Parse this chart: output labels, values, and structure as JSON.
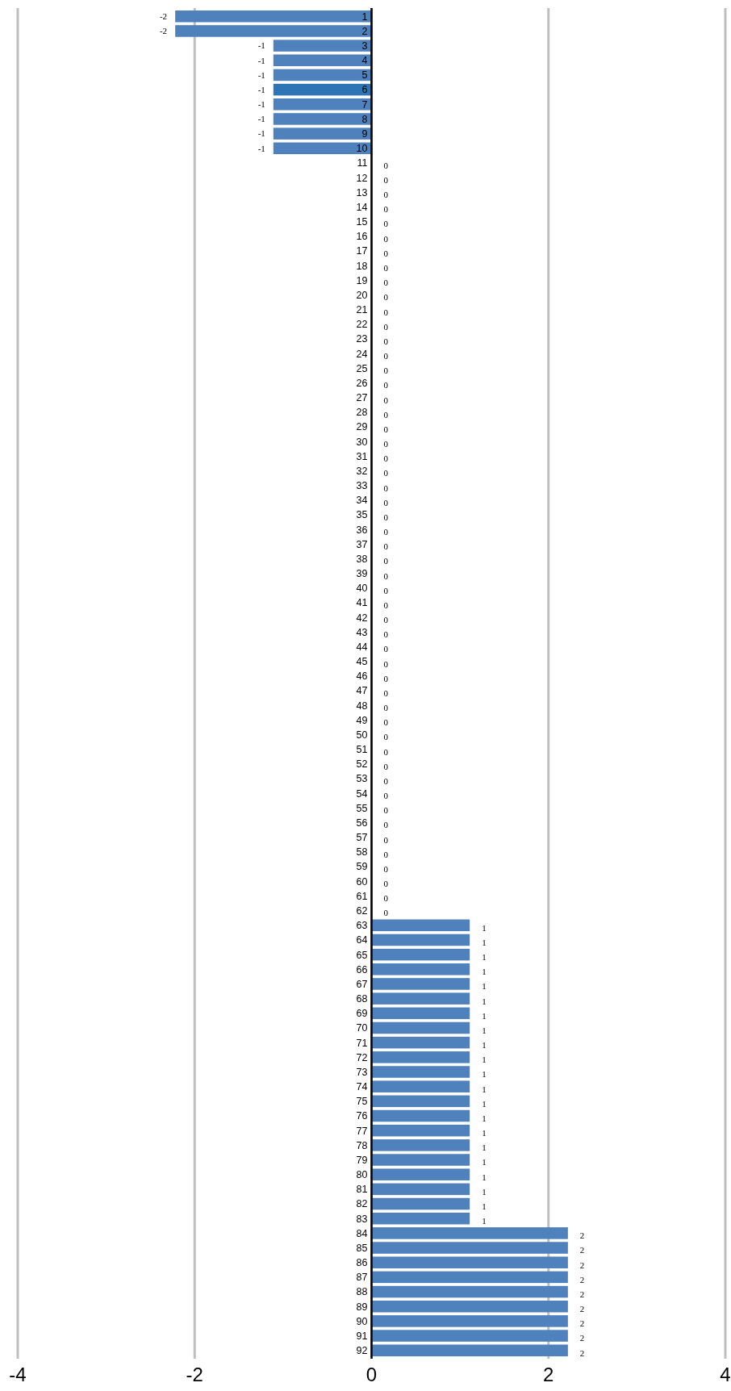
{
  "chart_data": {
    "type": "bar",
    "orientation": "horizontal",
    "categories": [
      "1",
      "2",
      "3",
      "4",
      "5",
      "6",
      "7",
      "8",
      "9",
      "10",
      "11",
      "12",
      "13",
      "14",
      "15",
      "16",
      "17",
      "18",
      "19",
      "20",
      "21",
      "22",
      "23",
      "24",
      "25",
      "26",
      "27",
      "28",
      "29",
      "30",
      "31",
      "32",
      "33",
      "34",
      "35",
      "36",
      "37",
      "38",
      "39",
      "40",
      "41",
      "42",
      "43",
      "44",
      "45",
      "46",
      "47",
      "48",
      "49",
      "50",
      "51",
      "52",
      "53",
      "54",
      "55",
      "56",
      "57",
      "58",
      "59",
      "60",
      "61",
      "62",
      "63",
      "64",
      "65",
      "66",
      "67",
      "68",
      "69",
      "70",
      "71",
      "72",
      "73",
      "74",
      "75",
      "76",
      "77",
      "78",
      "79",
      "80",
      "81",
      "82",
      "83",
      "84",
      "85",
      "86",
      "87",
      "88",
      "89",
      "90",
      "91",
      "92"
    ],
    "values": [
      -2.22,
      -2.22,
      -1.11,
      -1.11,
      -1.11,
      -1.11,
      -1.11,
      -1.11,
      -1.11,
      -1.11,
      0,
      0,
      0,
      0,
      0,
      0,
      0,
      0,
      0,
      0,
      0,
      0,
      0,
      0,
      0,
      0,
      0,
      0,
      0,
      0,
      0,
      0,
      0,
      0,
      0,
      0,
      0,
      0,
      0,
      0,
      0,
      0,
      0,
      0,
      0,
      0,
      0,
      0,
      0,
      0,
      0,
      0,
      0,
      0,
      0,
      0,
      0,
      0,
      0,
      0,
      0,
      0,
      1.11,
      1.11,
      1.11,
      1.11,
      1.11,
      1.11,
      1.11,
      1.11,
      1.11,
      1.11,
      1.11,
      1.11,
      1.11,
      1.11,
      1.11,
      1.11,
      1.11,
      1.11,
      1.11,
      1.11,
      1.11,
      2.22,
      2.22,
      2.22,
      2.22,
      2.22,
      2.22,
      2.22,
      2.22,
      2.22
    ],
    "value_labels": [
      "-2",
      "-2",
      "-1",
      "-1",
      "-1",
      "-1",
      "-1",
      "-1",
      "-1",
      "-1",
      "0",
      "0",
      "0",
      "0",
      "0",
      "0",
      "0",
      "0",
      "0",
      "0",
      "0",
      "0",
      "0",
      "0",
      "0",
      "0",
      "0",
      "0",
      "0",
      "0",
      "0",
      "0",
      "0",
      "0",
      "0",
      "0",
      "0",
      "0",
      "0",
      "0",
      "0",
      "0",
      "0",
      "0",
      "0",
      "0",
      "0",
      "0",
      "0",
      "0",
      "0",
      "0",
      "0",
      "0",
      "0",
      "0",
      "0",
      "0",
      "0",
      "0",
      "0",
      "0",
      "1",
      "1",
      "1",
      "1",
      "1",
      "1",
      "1",
      "1",
      "1",
      "1",
      "1",
      "1",
      "1",
      "1",
      "1",
      "1",
      "1",
      "1",
      "1",
      "1",
      "1",
      "2",
      "2",
      "2",
      "2",
      "2",
      "2",
      "2",
      "2",
      "2"
    ],
    "colors": [
      "#4f81bd",
      "#4f81bd",
      "#4f81bd",
      "#4f81bd",
      "#4f81bd",
      "#2e75b6",
      "#4f81bd",
      "#4f81bd",
      "#4f81bd",
      "#4f81bd",
      "#4f81bd",
      "#4f81bd",
      "#4f81bd",
      "#4f81bd",
      "#4f81bd",
      "#4f81bd",
      "#4f81bd",
      "#4f81bd",
      "#4f81bd",
      "#4f81bd",
      "#4f81bd",
      "#4f81bd",
      "#4f81bd",
      "#4f81bd",
      "#4f81bd",
      "#4f81bd",
      "#4f81bd",
      "#4f81bd",
      "#4f81bd",
      "#4f81bd",
      "#4f81bd",
      "#4f81bd",
      "#4f81bd",
      "#4f81bd",
      "#4f81bd",
      "#4f81bd",
      "#4f81bd",
      "#4f81bd",
      "#4f81bd",
      "#4f81bd",
      "#4f81bd",
      "#4f81bd",
      "#4f81bd",
      "#4f81bd",
      "#4f81bd",
      "#4f81bd",
      "#4f81bd",
      "#4f81bd",
      "#4f81bd",
      "#4f81bd",
      "#4f81bd",
      "#4f81bd",
      "#4f81bd",
      "#4f81bd",
      "#4f81bd",
      "#4f81bd",
      "#4f81bd",
      "#4f81bd",
      "#4f81bd",
      "#4f81bd",
      "#4f81bd",
      "#4f81bd",
      "#4f81bd",
      "#4f81bd",
      "#4f81bd",
      "#4f81bd",
      "#4f81bd",
      "#4f81bd",
      "#4f81bd",
      "#4f81bd",
      "#4f81bd",
      "#4f81bd",
      "#4f81bd",
      "#4f81bd",
      "#4f81bd",
      "#4f81bd",
      "#4f81bd",
      "#4f81bd",
      "#4f81bd",
      "#4f81bd",
      "#4f81bd",
      "#4f81bd",
      "#4f81bd",
      "#4f81bd",
      "#4f81bd",
      "#4f81bd",
      "#4f81bd",
      "#4f81bd",
      "#4f81bd",
      "#4f81bd",
      "#4f81bd",
      "#4f81bd"
    ],
    "xlim": [
      -4,
      4
    ],
    "xticks": [
      -4,
      -2,
      0,
      2,
      4
    ],
    "grid": "x"
  }
}
